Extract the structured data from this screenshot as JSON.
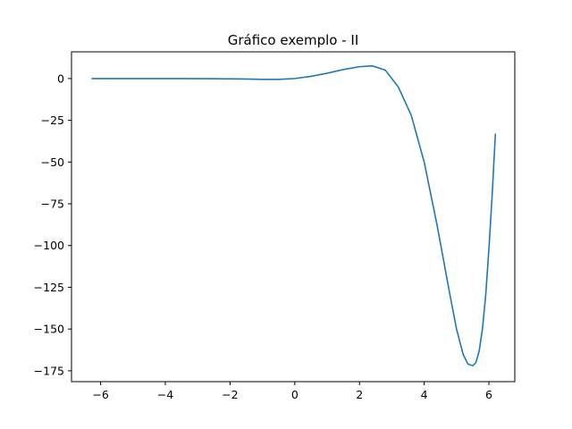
{
  "chart_data": {
    "type": "line",
    "title": "Gráfico exemplo - II",
    "xlabel": "",
    "ylabel": "",
    "xlim": [
      -6.9,
      6.8
    ],
    "ylim": [
      -181.5,
      16
    ],
    "x_ticks": [
      -6,
      -4,
      -2,
      0,
      2,
      4,
      6
    ],
    "x_tick_labels": [
      "−6",
      "−4",
      "−2",
      "0",
      "2",
      "4",
      "6"
    ],
    "y_ticks": [
      0,
      -25,
      -50,
      -75,
      -100,
      -125,
      -150,
      -175
    ],
    "y_tick_labels": [
      "0",
      "−25",
      "−50",
      "−75",
      "−100",
      "−125",
      "−150",
      "−175"
    ],
    "grid": false,
    "series": [
      {
        "color": "#1f77b4",
        "x": [
          -6.28,
          -5.5,
          -4.5,
          -3.5,
          -2.5,
          -1.5,
          -1.0,
          -0.5,
          0.0,
          0.5,
          1.0,
          1.5,
          2.0,
          2.4,
          2.8,
          3.2,
          3.6,
          4.0,
          4.4,
          4.8,
          5.0,
          5.2,
          5.35,
          5.5,
          5.6,
          5.7,
          5.8,
          5.9,
          6.0,
          6.1,
          6.2
        ],
        "y": [
          0,
          0,
          0,
          0,
          -0.1,
          -0.3,
          -0.5,
          -0.5,
          0,
          1.3,
          3.2,
          5.4,
          7.1,
          7.6,
          5.0,
          -5.0,
          -22.0,
          -50.0,
          -88.0,
          -130.0,
          -150.0,
          -165.0,
          -171.0,
          -172.0,
          -170.0,
          -163.0,
          -150.0,
          -130.0,
          -102.0,
          -70.0,
          -33.0
        ]
      }
    ]
  }
}
